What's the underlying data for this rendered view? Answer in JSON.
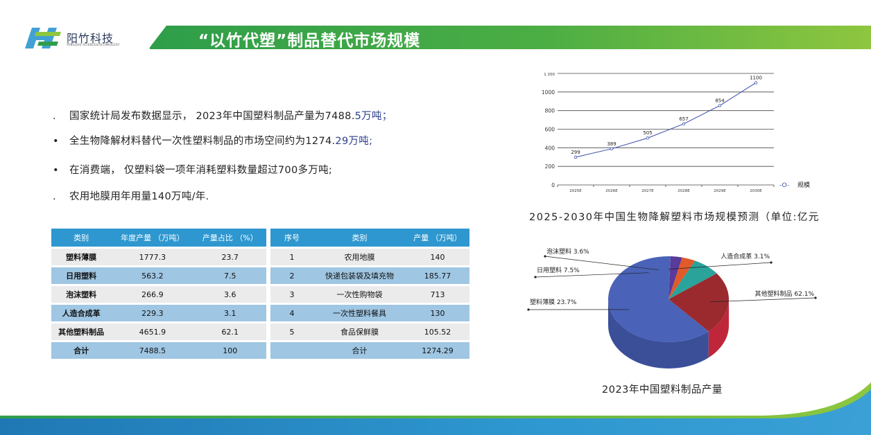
{
  "header": {
    "company_name": "阳竹科技",
    "company_subtitle": "YANGZHU SCIENCE&TECHNOLOGY",
    "title": "“以竹代塑”制品替代市场规模",
    "colors": {
      "green_dark": "#2e9e4a",
      "green_light": "#8ec63f",
      "blue": "#2e97cf"
    }
  },
  "bullets": [
    {
      "marker": ".",
      "text": "国家统计局发布数据显示，  2023年中国塑料制品产量为7488.",
      "accent": "5万吨；"
    },
    {
      "marker": "•",
      "text": "全生物降解材料替代一次性塑料制品的市场空间约为1274.",
      "accent": "29万吨;"
    },
    {
      "marker": "•",
      "text": "在消费端，  仅塑料袋一项年消耗塑料数量超过700多万吨;",
      "accent": ""
    },
    {
      "marker": ".",
      "text": "农用地膜用年用量140万吨/年.",
      "accent": ""
    }
  ],
  "table1": {
    "headers": [
      "类别",
      "年度产量 （万吨）",
      "产量占比 （%）"
    ],
    "rows": [
      [
        "塑料薄膜",
        "1777.3",
        "23.7"
      ],
      [
        "日用塑料",
        "563.2",
        "7.5"
      ],
      [
        "泡沫塑料",
        "266.9",
        "3.6"
      ],
      [
        "人造合成革",
        "229.3",
        "3.1"
      ],
      [
        "其他塑料制品",
        "4651.9",
        "62.1"
      ],
      [
        "合计",
        "7488.5",
        "100"
      ]
    ]
  },
  "table2": {
    "headers": [
      "序号",
      "类别",
      "产量 （万吨）"
    ],
    "rows": [
      [
        "1",
        "农用地膜",
        "140"
      ],
      [
        "2",
        "快递包装袋及填充物",
        "185.77"
      ],
      [
        "3",
        "一次性购物袋",
        "713"
      ],
      [
        "4",
        "一次性塑料餐具",
        "130"
      ],
      [
        "5",
        "食品保鲜膜",
        "105.52"
      ],
      [
        "",
        "合计",
        "1274.29"
      ]
    ]
  },
  "chart_data": [
    {
      "type": "line",
      "title": "2025-2030年中国生物降解塑料市场规模预测（单位:亿元",
      "categories": [
        "2025E",
        "2026E",
        "2027E",
        "2028E",
        "2029E",
        "2030E"
      ],
      "y_ticks": [
        "0",
        "200",
        "400",
        "600",
        "800",
        "1000",
        "1 200"
      ],
      "ylim": [
        0,
        1200
      ],
      "series": [
        {
          "name": "规模",
          "values": [
            299,
            389,
            505,
            657,
            854,
            1100
          ],
          "labels": [
            "299",
            "389",
            "505",
            "657",
            "854",
            "1100"
          ],
          "color": "#3a4aa8"
        }
      ],
      "legend": {
        "position": "right",
        "marker": "-O-",
        "label": "规模"
      },
      "grid": true
    },
    {
      "type": "pie",
      "title": "2023年中国塑料制品产量",
      "slices": [
        {
          "label": "其他塑料制品 62.1%",
          "value": 62.1,
          "color": "#4a63b8",
          "side_color": "#3b4f99"
        },
        {
          "label": "塑料薄膜 23.7%",
          "value": 23.7,
          "color": "#9b2a2f",
          "side_color": "#c0263a"
        },
        {
          "label": "日用塑料 7.5%",
          "value": 7.5,
          "color": "#2aa39a",
          "side_color": "#1e7c75"
        },
        {
          "label": "泡沫塑料 3.6%",
          "value": 3.6,
          "color": "#e05a2a",
          "side_color": "#b3461f"
        },
        {
          "label": "人造合成革 3.1%",
          "value": 3.1,
          "color": "#5a3a9a",
          "side_color": "#452c78"
        }
      ]
    }
  ]
}
